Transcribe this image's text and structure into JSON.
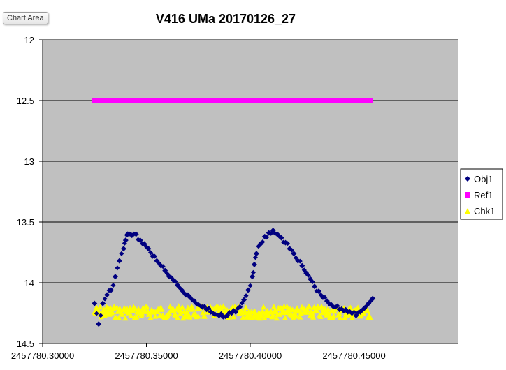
{
  "tooltip": {
    "label": "Chart Area"
  },
  "colors": {
    "plot_background": "#c0c0c0",
    "gridline": "#000000",
    "obj1": "#000080",
    "ref1": "#ff00ff",
    "chk1": "#ffff00"
  },
  "chart_data": {
    "type": "scatter",
    "title": "V416 UMa 20170126_27",
    "xlabel": "",
    "ylabel": "",
    "xlim": [
      2457780.3,
      2457780.5
    ],
    "ylim": [
      14.5,
      12
    ],
    "y_reversed": true,
    "x_ticks": [
      2457780.3,
      2457780.35,
      2457780.4,
      2457780.45
    ],
    "x_tick_labels": [
      "2457780.30000",
      "2457780.35000",
      "2457780.40000",
      "2457780.45000"
    ],
    "y_ticks": [
      12,
      12.5,
      13,
      13.5,
      14,
      14.5
    ],
    "y_tick_labels": [
      "12",
      "12.5",
      "13",
      "13.5",
      "14",
      "14.5"
    ],
    "grid": "horizontal",
    "legend_position": "right",
    "series": [
      {
        "name": "Obj1",
        "marker": "diamond",
        "x": [
          2457780.325,
          2457780.327,
          2457780.329,
          2457780.331,
          2457780.333,
          2457780.335,
          2457780.337,
          2457780.339,
          2457780.34,
          2457780.341,
          2457780.343,
          2457780.345,
          2457780.347,
          2457780.349,
          2457780.351,
          2457780.353,
          2457780.355,
          2457780.357,
          2457780.359,
          2457780.361,
          2457780.363,
          2457780.365,
          2457780.367,
          2457780.369,
          2457780.371,
          2457780.373,
          2457780.375,
          2457780.377,
          2457780.379,
          2457780.381,
          2457780.383,
          2457780.385,
          2457780.387,
          2457780.389,
          2457780.391,
          2457780.393,
          2457780.395,
          2457780.397,
          2457780.399,
          2457780.401,
          2457780.402,
          2457780.403,
          2457780.405,
          2457780.407,
          2457780.409,
          2457780.411,
          2457780.413,
          2457780.415,
          2457780.417,
          2457780.419,
          2457780.421,
          2457780.423,
          2457780.425,
          2457780.427,
          2457780.429,
          2457780.431,
          2457780.433,
          2457780.435,
          2457780.437,
          2457780.439,
          2457780.441,
          2457780.443,
          2457780.445,
          2457780.447,
          2457780.449,
          2457780.451,
          2457780.453,
          2457780.455,
          2457780.457,
          2457780.459
        ],
        "y": [
          14.17,
          14.34,
          14.17,
          14.1,
          14.06,
          13.95,
          13.82,
          13.72,
          13.65,
          13.6,
          13.61,
          13.6,
          13.65,
          13.68,
          13.72,
          13.78,
          13.82,
          13.86,
          13.9,
          13.95,
          13.98,
          14.02,
          14.06,
          14.1,
          14.12,
          14.15,
          14.18,
          14.2,
          14.22,
          14.24,
          14.26,
          14.27,
          14.28,
          14.27,
          14.25,
          14.24,
          14.2,
          14.14,
          14.06,
          13.95,
          13.85,
          13.76,
          13.68,
          13.62,
          13.59,
          13.57,
          13.6,
          13.63,
          13.67,
          13.72,
          13.76,
          13.82,
          13.86,
          13.92,
          13.97,
          14.03,
          14.07,
          14.12,
          14.15,
          14.18,
          14.2,
          14.22,
          14.23,
          14.24,
          14.25,
          14.27,
          14.24,
          14.21,
          14.17,
          14.13
        ]
      },
      {
        "name": "Ref1",
        "marker": "square",
        "x_range": [
          2457780.325,
          2457780.458
        ],
        "y": 12.5
      },
      {
        "name": "Chk1",
        "marker": "triangle",
        "x_range": [
          2457780.325,
          2457780.458
        ],
        "y_mean": 14.24,
        "y_spread": 0.05
      }
    ]
  }
}
